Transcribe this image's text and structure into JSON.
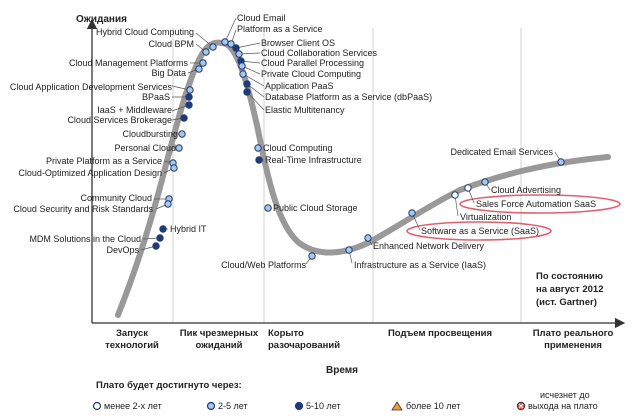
{
  "axes": {
    "y_title": "Ожидания",
    "x_title": "Время"
  },
  "phases": [
    {
      "id": "trigger",
      "lines": [
        "Запуск",
        "технологий"
      ]
    },
    {
      "id": "peak",
      "lines": [
        "Пик чрезмерных",
        "ожиданий"
      ]
    },
    {
      "id": "trough",
      "lines": [
        "Корыто",
        "разочарований"
      ]
    },
    {
      "id": "slope",
      "lines": [
        "Подъем просвещения"
      ]
    },
    {
      "id": "plateau",
      "lines": [
        "Плато реального",
        "применения"
      ]
    }
  ],
  "note": {
    "lines": [
      "По состоянию",
      "на август 2012",
      "(ист. Gartner)"
    ]
  },
  "legend": {
    "title": "Плато будет достигнуто через:",
    "items": [
      {
        "id": "lt2",
        "label": "менее 2-х лет",
        "marker": "circle",
        "fill": "#ffffff"
      },
      {
        "id": "y2_5",
        "label": "2-5 лет",
        "marker": "circle",
        "fill": "#a8c8e8"
      },
      {
        "id": "y5_10",
        "label": "5-10 лет",
        "marker": "circle",
        "fill": "#1f3a78"
      },
      {
        "id": "gt10",
        "label": "более 10 лет",
        "marker": "triangle",
        "fill": "#f0a030"
      },
      {
        "id": "obsolete",
        "label_lines": [
          "исчезнет до",
          "выхода на плато"
        ],
        "marker": "cross",
        "fill": "#e04848"
      }
    ]
  },
  "colors": {
    "curve": "#999999",
    "lt2": "#ffffff",
    "y2_5": "#a8c8e8",
    "y5_10": "#1f3a78",
    "highlight": "#e06070"
  },
  "technologies": [
    {
      "label": "Hybrid Cloud Computing",
      "category": "y2_5"
    },
    {
      "label": "Cloud BPM",
      "category": "y2_5"
    },
    {
      "label": "Cloud Management Platforms",
      "category": "y2_5"
    },
    {
      "label": "Big Data",
      "category": "y2_5"
    },
    {
      "label": "Cloud Application Development Services",
      "category": "y2_5"
    },
    {
      "label": "BPaaS",
      "category": "y5_10"
    },
    {
      "label": "IaaS + Middleware",
      "category": "y5_10"
    },
    {
      "label": "Cloud Services Brokerage",
      "category": "y5_10"
    },
    {
      "label": "Cloudbursting",
      "category": "y2_5"
    },
    {
      "label": "Personal Cloud",
      "category": "y2_5"
    },
    {
      "label": "Private Platform as a Service",
      "category": "y2_5"
    },
    {
      "label": "Cloud-Optimized Application Design",
      "category": "y2_5"
    },
    {
      "label": "Community Cloud",
      "category": "y2_5"
    },
    {
      "label": "Cloud Security and Risk Standards",
      "category": "y2_5"
    },
    {
      "label": "Hybrid IT",
      "category": "y5_10"
    },
    {
      "label": "MDM Solutions in the Cloud",
      "category": "y5_10"
    },
    {
      "label": "DevOps",
      "category": "y5_10"
    },
    {
      "label": "Cloud Email",
      "category": "y2_5"
    },
    {
      "label": "Platform as a Service",
      "category": "y2_5"
    },
    {
      "label": "Browser Client OS",
      "category": "y5_10"
    },
    {
      "label": "Cloud Collaboration Services",
      "category": "y2_5"
    },
    {
      "label": "Cloud Parallel Processing",
      "category": "y5_10"
    },
    {
      "label": "Private Cloud Computing",
      "category": "y2_5"
    },
    {
      "label": "Application PaaS",
      "category": "y2_5"
    },
    {
      "label": "Database Platform as a Service (dbPaaS)",
      "category": "y5_10"
    },
    {
      "label": "Elastic Multitenancy",
      "category": "y5_10"
    },
    {
      "label": "Cloud Computing",
      "category": "y2_5"
    },
    {
      "label": "Real-Time Infrastructure",
      "category": "y5_10"
    },
    {
      "label": "Public Cloud Storage",
      "category": "y2_5"
    },
    {
      "label": "Cloud/Web Platforms",
      "category": "y2_5"
    },
    {
      "label": "Infrastructure as a Service (IaaS)",
      "category": "y2_5"
    },
    {
      "label": "Enhanced Network Delivery",
      "category": "y2_5"
    },
    {
      "label": "Software as a Service (SaaS)",
      "category": "y2_5",
      "highlight": true
    },
    {
      "label": "Virtualization",
      "category": "lt2"
    },
    {
      "label": "Sales Force Automation SaaS",
      "category": "lt2",
      "highlight": true
    },
    {
      "label": "Cloud Advertising",
      "category": "y2_5"
    },
    {
      "label": "Dedicated Email Services",
      "category": "y2_5"
    }
  ]
}
